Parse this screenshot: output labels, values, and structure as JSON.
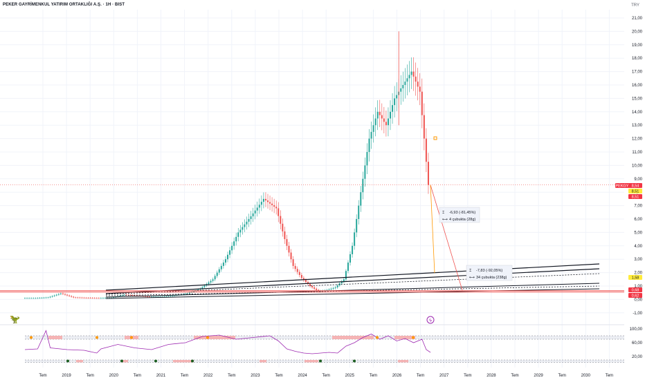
{
  "header": {
    "title": "PEKER GAYRİMENKUL YATIRIM ORTAKLIĞI A.Ş. · 1H · BIST",
    "currency": "TRY"
  },
  "colors": {
    "up": "#26a69a",
    "down": "#ef5350",
    "rsi": "#9c27b0",
    "accent": "#ff9800"
  },
  "icons": {
    "logo": "dino-logo-icon",
    "event": "lightning-event-icon"
  },
  "chart_data": {
    "type": "candlestick",
    "price_axis": {
      "ticks": [
        "21,00",
        "20,00",
        "19,00",
        "18,00",
        "17,00",
        "16,00",
        "15,00",
        "14,00",
        "13,00",
        "12,00",
        "11,00",
        "10,00",
        "9,00",
        "8,00",
        "7,00",
        "6,00",
        "5,00",
        "4,00",
        "3,00",
        "2,00",
        "1,00",
        "0,00",
        "-1,00"
      ]
    },
    "time_axis": {
      "labels": [
        "Tem",
        "2019",
        "Tem",
        "2020",
        "Tem",
        "2021",
        "Tem",
        "2022",
        "Tem",
        "2023",
        "Tem",
        "2024",
        "Tem",
        "2025",
        "Tem",
        "2026",
        "Tem",
        "2027",
        "Tem",
        "2028",
        "Tem",
        "2029",
        "Tem",
        "2030",
        "Tem"
      ]
    },
    "price_labels": [
      {
        "text": "PEKGY",
        "kind": "ticker"
      },
      {
        "text": "8,54",
        "kind": "last"
      },
      {
        "text": "8,51",
        "kind": "yellow"
      },
      {
        "text": "8,51",
        "kind": "red"
      },
      {
        "text": "1,58",
        "kind": "yellow"
      },
      {
        "text": "0,68",
        "kind": "red"
      },
      {
        "text": "0,62",
        "kind": "red"
      }
    ],
    "measure_1": {
      "change": "-6,93 (-81,45%)",
      "bars": "4 çubukta (28g)"
    },
    "measure_2": {
      "change": "-7,83 (-92,05%)",
      "bars": "34 çubukta (238g)"
    },
    "rsi_axis": {
      "ticks": [
        "100,00",
        "60,00",
        "20,00"
      ]
    },
    "last_price": "8,54",
    "series_points": [
      [
        0,
        0.1
      ],
      [
        3,
        0.1
      ],
      [
        6,
        0.15
      ],
      [
        9,
        0.45
      ],
      [
        12,
        0.15
      ],
      [
        15,
        0.12
      ],
      [
        18,
        0.1
      ],
      [
        21,
        0.12
      ],
      [
        24,
        0.35
      ],
      [
        27,
        0.28
      ],
      [
        30,
        0.2
      ],
      [
        33,
        0.2
      ],
      [
        36,
        0.3
      ],
      [
        39,
        0.45
      ],
      [
        42,
        0.8
      ],
      [
        45,
        1.5
      ],
      [
        48,
        3
      ],
      [
        51,
        5
      ],
      [
        54,
        6.2
      ],
      [
        57,
        7.5
      ],
      [
        60,
        6.8
      ],
      [
        62,
        4.5
      ],
      [
        64,
        2.5
      ],
      [
        66,
        1.6
      ],
      [
        68,
        1
      ],
      [
        70,
        0.6
      ],
      [
        72,
        0.7
      ],
      [
        74,
        0.9
      ],
      [
        76,
        1.5
      ],
      [
        78,
        4
      ],
      [
        80,
        8
      ],
      [
        82,
        12
      ],
      [
        84,
        14
      ],
      [
        86,
        13
      ],
      [
        88,
        15
      ],
      [
        90,
        16
      ],
      [
        92,
        17
      ],
      [
        94,
        15.5
      ],
      [
        95,
        12
      ],
      [
        96,
        8.54
      ]
    ],
    "rsi_points": [
      [
        0,
        40
      ],
      [
        3,
        42
      ],
      [
        5,
        95
      ],
      [
        6,
        45
      ],
      [
        10,
        40
      ],
      [
        14,
        38
      ],
      [
        17,
        30
      ],
      [
        18,
        42
      ],
      [
        22,
        55
      ],
      [
        26,
        45
      ],
      [
        30,
        40
      ],
      [
        34,
        55
      ],
      [
        38,
        60
      ],
      [
        42,
        78
      ],
      [
        46,
        82
      ],
      [
        50,
        70
      ],
      [
        54,
        75
      ],
      [
        58,
        80
      ],
      [
        60,
        65
      ],
      [
        62,
        42
      ],
      [
        64,
        35
      ],
      [
        66,
        30
      ],
      [
        68,
        28
      ],
      [
        70,
        30
      ],
      [
        72,
        32
      ],
      [
        74,
        30
      ],
      [
        76,
        50
      ],
      [
        78,
        60
      ],
      [
        80,
        75
      ],
      [
        82,
        85
      ],
      [
        84,
        70
      ],
      [
        86,
        80
      ],
      [
        88,
        65
      ],
      [
        90,
        72
      ],
      [
        92,
        60
      ],
      [
        94,
        70
      ],
      [
        95,
        40
      ],
      [
        96,
        32
      ]
    ]
  }
}
